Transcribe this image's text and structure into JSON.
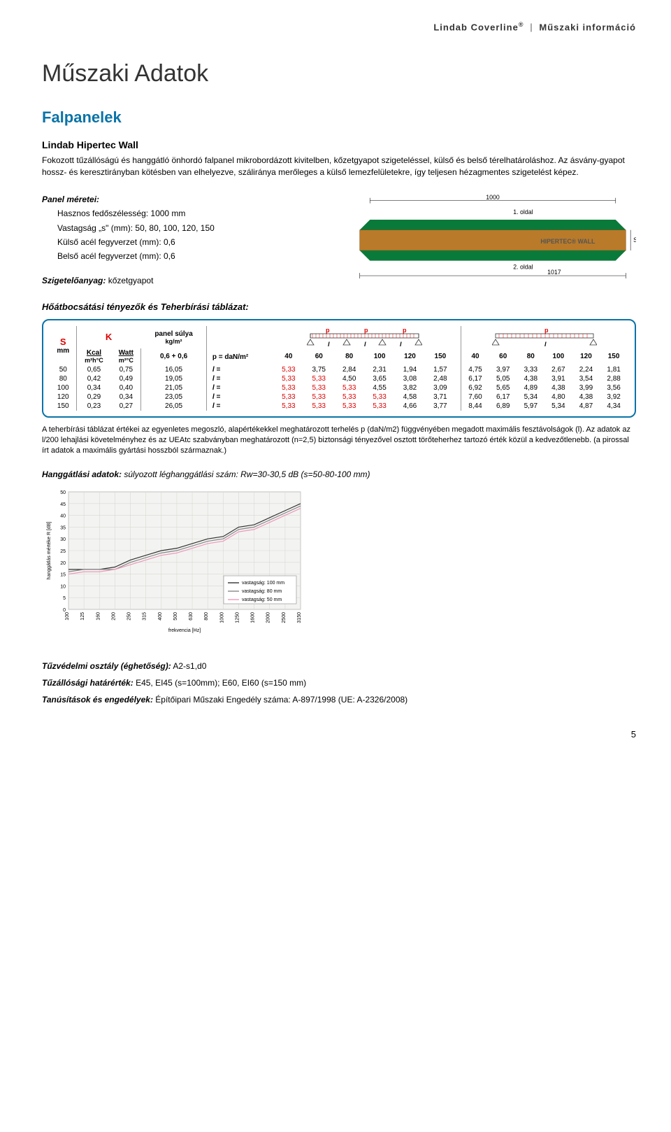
{
  "header": {
    "brand": "Lindab Coverline",
    "reg": "®",
    "section": "Műszaki információ"
  },
  "title": "Műszaki Adatok",
  "subtitle": "Falpanelek",
  "product": "Lindab Hipertec Wall",
  "intro": "Fokozott tűzállóságú és hanggátló önhordó falpanel mikrobordázott kivitelben, kőzetgyapot szigeteléssel, külső és belső térelhatároláshoz. Az ásvány-gyapot hossz- és keresztirányban kötésben van elhelyezve, száliránya merőleges a külső lemezfelületekre, így teljesen hézagmentes szigetelést képez.",
  "panel_meretei_h": "Panel méretei:",
  "panel_meretei": [
    "Hasznos fedőszélesség: 1000 mm",
    "Vastagság „s\" (mm): 50, 80, 100, 120, 150",
    "Külső acél fegyverzet (mm): 0,6",
    "Belső acél fegyverzet (mm): 0,6"
  ],
  "szig": {
    "label": "Szigetelőanyag:",
    "val": "kőzetgyapot"
  },
  "panel_diagram": {
    "top_width": "1000",
    "side1": "1. oldal",
    "side2": "2. oldal",
    "bottom_width": "1017",
    "label": "HIPERTEC® WALL",
    "s": "S",
    "colors": {
      "top": "#0a7a3a",
      "core": "#b97a2a",
      "outline": "#333"
    }
  },
  "htab_h": "Hőátbocsátási tényezők és Teherbírási táblázat:",
  "table": {
    "S": "S",
    "mm": "mm",
    "K": "K",
    "kcal": "Kcal",
    "kcal_u": "m²h°C",
    "watt": "Watt",
    "watt_u": "m²°C",
    "panel_sulya": "panel súlya",
    "kgm2": "kg/m²",
    "thk": "0,6 + 0,6",
    "p": "p",
    "L": "l",
    "pdan": "p = daN/m²",
    "leq": "l =",
    "cols1": [
      "40",
      "60",
      "80",
      "100",
      "120",
      "150"
    ],
    "cols2": [
      "40",
      "60",
      "80",
      "100",
      "120",
      "150"
    ],
    "rows": [
      {
        "s": "50",
        "kc": "0,65",
        "w": "0,75",
        "ps": "16,05",
        "a": [
          "5,33",
          "3,75",
          "2,84",
          "2,31",
          "1,94",
          "1,57"
        ],
        "b": [
          "4,75",
          "3,97",
          "3,33",
          "2,67",
          "2,24",
          "1,81"
        ],
        "red": 1
      },
      {
        "s": "80",
        "kc": "0,42",
        "w": "0,49",
        "ps": "19,05",
        "a": [
          "5,33",
          "5,33",
          "4,50",
          "3,65",
          "3,08",
          "2,48"
        ],
        "b": [
          "6,17",
          "5,05",
          "4,38",
          "3,91",
          "3,54",
          "2,88"
        ],
        "red": 2
      },
      {
        "s": "100",
        "kc": "0,34",
        "w": "0,40",
        "ps": "21,05",
        "a": [
          "5,33",
          "5,33",
          "5,33",
          "4,55",
          "3,82",
          "3,09"
        ],
        "b": [
          "6,92",
          "5,65",
          "4,89",
          "4,38",
          "3,99",
          "3,56"
        ],
        "red": 3
      },
      {
        "s": "120",
        "kc": "0,29",
        "w": "0,34",
        "ps": "23,05",
        "a": [
          "5,33",
          "5,33",
          "5,33",
          "5,33",
          "4,58",
          "3,71"
        ],
        "b": [
          "7,60",
          "6,17",
          "5,34",
          "4,80",
          "4,38",
          "3,92"
        ],
        "red": 4
      },
      {
        "s": "150",
        "kc": "0,23",
        "w": "0,27",
        "ps": "26,05",
        "a": [
          "5,33",
          "5,33",
          "5,33",
          "5,33",
          "4,66",
          "3,77"
        ],
        "b": [
          "8,44",
          "6,89",
          "5,97",
          "5,34",
          "4,87",
          "4,34"
        ],
        "red": 4
      }
    ]
  },
  "legend": "A teherbírási táblázat értékei az egyenletes megoszló, alapértékekkel meghatározott terhelés p (daN/m2) függvényében megadott maximális fesztávolságok (l). Az adatok az l/200 lehajlási követelményhez és az UEAtc szabványban meghatározott (n=2,5) biztonsági tényezővel osztott törőteherhez tartozó érték közül a kedvezőtlenebb. (a pirossal írt adatok a maximális gyártási hosszból származnak.)",
  "hang_h": {
    "label": "Hanggátlási adatok:",
    "val": "súlyozott léghanggátlási szám: Rw=30-30,5 dB (s=50-80-100 mm)"
  },
  "chart": {
    "type": "line",
    "xlabel": "frekvencia [Hz]",
    "ylabel": "hanggátlás mértéke R [dB]",
    "ylim": [
      0,
      50
    ],
    "ytick_step": 5,
    "xticks": [
      "100",
      "125",
      "160",
      "200",
      "250",
      "315",
      "400",
      "500",
      "630",
      "800",
      "1000",
      "1250",
      "1600",
      "2000",
      "2500",
      "3150"
    ],
    "series": [
      {
        "name": "vastagság: 100 mm",
        "color": "#333",
        "values": [
          17,
          17,
          17,
          18,
          21,
          23,
          25,
          26,
          28,
          30,
          31,
          35,
          36,
          39,
          42,
          45
        ]
      },
      {
        "name": "vastagság:  80 mm",
        "color": "#888",
        "values": [
          16,
          17,
          17,
          17,
          20,
          22,
          24,
          25,
          27,
          29,
          30,
          34,
          35,
          38,
          41,
          44
        ]
      },
      {
        "name": "vastagság:  50 mm",
        "color": "#e9b",
        "values": [
          15,
          16,
          16,
          17,
          19,
          21,
          23,
          24,
          26,
          28,
          29,
          33,
          34,
          37,
          40,
          43
        ]
      }
    ],
    "bg": "#f3f4f2",
    "grid": "#d8d8d2",
    "legend_bg": "#fff",
    "legend_border": "#999"
  },
  "footer": {
    "tuzv": {
      "label": "Tűzvédelmi osztály (éghetőség):",
      "val": "A2-s1,d0"
    },
    "tuzh": {
      "label": "Tűzállósági határérték:",
      "val": "E45, EI45 (s=100mm); E60, EI60 (s=150 mm)"
    },
    "tan": {
      "label": "Tanúsítások és engedélyek:",
      "val": "Építőipari Műszaki Engedély száma: A-897/1998 (UE: A-2326/2008)"
    }
  },
  "pagenum": "5"
}
